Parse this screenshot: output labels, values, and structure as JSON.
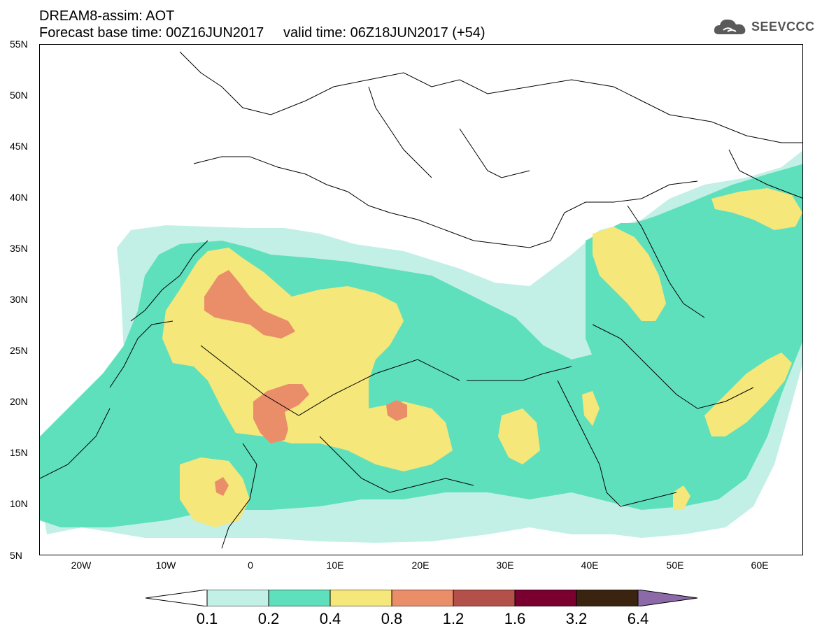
{
  "title": {
    "line1": "DREAM8-assim: AOT",
    "line2": "Forecast base time: 00Z16JUN2017     valid time: 06Z18JUN2017 (+54)"
  },
  "logo": {
    "text": "SEEVCCC",
    "icon": "cloud-icon"
  },
  "map": {
    "lat_labels": [
      "55N",
      "50N",
      "45N",
      "40N",
      "35N",
      "30N",
      "25N",
      "20N",
      "15N",
      "10N",
      "5N"
    ],
    "lon_labels": [
      "20W",
      "10W",
      "0",
      "10E",
      "20E",
      "30E",
      "40E",
      "50E",
      "60E"
    ],
    "lon_range": [
      -25,
      65
    ],
    "lat_range": [
      5,
      55
    ]
  },
  "colorbar": {
    "labels": [
      "0.1",
      "0.2",
      "0.4",
      "0.8",
      "1.2",
      "1.6",
      "3.2",
      "6.4"
    ],
    "colors": [
      "#ffffff",
      "#c2f0e6",
      "#5fe0bc",
      "#f5e77a",
      "#ea8e6a",
      "#b3504a",
      "#7a0030",
      "#3a2410",
      "#8c6aa8"
    ]
  },
  "colors": {
    "level1": "#c2f0e6",
    "level2": "#5fe0bc",
    "level3": "#f5e77a",
    "level4": "#ea8e6a",
    "border": "#000000"
  }
}
